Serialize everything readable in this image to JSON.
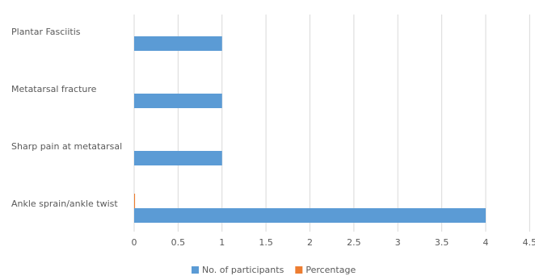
{
  "chart_data": {
    "type": "hbar",
    "categories": [
      "Plantar Fasciitis",
      "Metatarsal fracture",
      "Sharp pain at metatarsal",
      "Ankle sprain/ankle twist"
    ],
    "series": [
      {
        "name": "No. of participants",
        "color": "#5b9bd5",
        "values": [
          1,
          1,
          1,
          4
        ]
      },
      {
        "name": "Percentage",
        "color": "#ed7d31",
        "values": [
          0,
          0,
          0,
          0.01
        ]
      }
    ],
    "xlim": [
      0,
      4.5
    ],
    "xticks": [
      0,
      0.5,
      1,
      1.5,
      2,
      2.5,
      3,
      3.5,
      4,
      4.5
    ],
    "grid": true,
    "legend": "bottom"
  }
}
